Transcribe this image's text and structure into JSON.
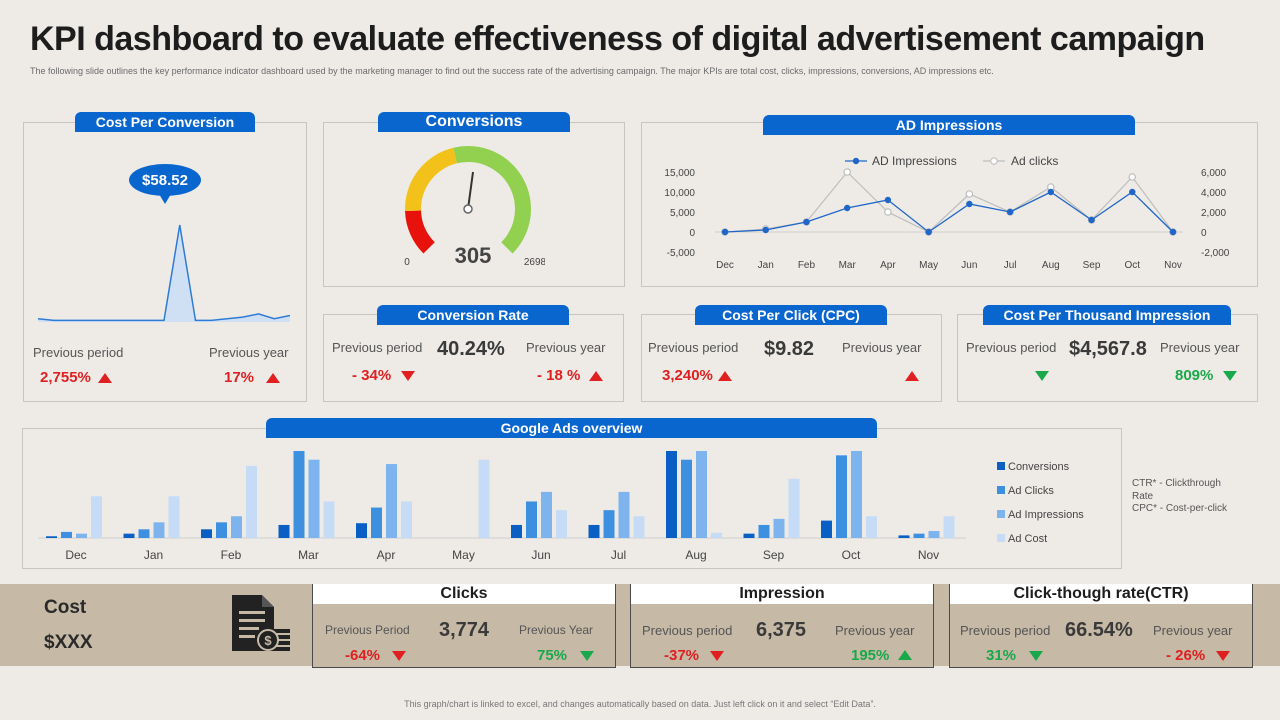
{
  "title": "KPI dashboard to evaluate effectiveness of digital advertisement campaign",
  "subtitle": "The following slide outlines the key performance indicator dashboard used by the marketing manager to find out the success rate of the advertising campaign. The major KPIs are total cost, clicks, impressions, conversions, AD impressions etc.",
  "cost_per_conversion": {
    "title": "Cost Per Conversion",
    "bubble": "$58.52",
    "prev_period_label": "Previous period",
    "prev_year_label": "Previous year",
    "prev_period_value": "2,755%",
    "prev_year_value": "17%"
  },
  "conversions": {
    "title": "Conversions",
    "value": "305",
    "min": "0",
    "max": "2698"
  },
  "conversion_rate": {
    "title": "Conversion Rate",
    "value": "40.24%",
    "prev_period_label": "Previous period",
    "prev_year_label": "Previous year",
    "prev_period_value": "- 34%",
    "prev_year_value": "- 18 %"
  },
  "cpc": {
    "title": "Cost Per Click (CPC)",
    "value": "$9.82",
    "prev_period_label": "Previous period",
    "prev_year_label": "Previous year",
    "prev_period_value": "3,240%"
  },
  "cpm": {
    "title": "Cost Per Thousand Impression",
    "value": "$4,567.8",
    "prev_period_label": "Previous period",
    "prev_year_label": "Previous year",
    "prev_year_value": "809%"
  },
  "google_ads": {
    "title": "Google Ads overview",
    "note1": "CTR* - Clickthrough Rate",
    "note2": "CPC* - Cost-per-click"
  },
  "cost": {
    "label": "Cost",
    "value": "$XXX"
  },
  "clicks": {
    "title": "Clicks",
    "prev_period_label": "Previous Period",
    "prev_year_label": "Previous Year",
    "value": "3,774",
    "prev_period_value": "-64%",
    "prev_year_value": "75%"
  },
  "impression": {
    "title": "Impression",
    "prev_period_label": "Previous period",
    "prev_year_label": "Previous year",
    "value": "6,375",
    "prev_period_value": "-37%",
    "prev_year_value": "195%"
  },
  "ctr": {
    "title": "Click-though rate(CTR)",
    "prev_period_label": "Previous period",
    "prev_year_label": "Previous year",
    "value": "66.54%",
    "prev_period_value": "31%",
    "prev_year_value": "- 26%"
  },
  "footer": "This graph/chart is linked to excel, and changes automatically based on data. Just left click on it and select “Edit Data”.",
  "colors": {
    "accent": "#0a66cf",
    "red": "#e02020",
    "green": "#19a84a",
    "band": "#c6b9a6"
  },
  "chart_data": [
    {
      "type": "area",
      "title": "Cost Per Conversion",
      "values": [
        2,
        1,
        1,
        1,
        1,
        1,
        1,
        1,
        1,
        60,
        1,
        1,
        2,
        3,
        5,
        2,
        4
      ]
    },
    {
      "type": "gauge",
      "title": "Conversions",
      "value": 305,
      "range": [
        0,
        2698
      ],
      "segments": [
        {
          "name": "red",
          "color": "#e8120c",
          "to": 0.16
        },
        {
          "name": "yellow",
          "color": "#f2c21a",
          "to": 0.45
        },
        {
          "name": "green",
          "color": "#92d050",
          "to": 1.0
        }
      ]
    },
    {
      "type": "line",
      "title": "AD Impressions",
      "categories": [
        "Dec",
        "Jan",
        "Feb",
        "Mar",
        "Apr",
        "May",
        "Jun",
        "Jul",
        "Aug",
        "Sep",
        "Oct",
        "Nov"
      ],
      "series": [
        {
          "name": "AD Impressions",
          "axis": "left",
          "values": [
            0,
            500,
            2500,
            6000,
            8000,
            0,
            7000,
            5000,
            10000,
            3000,
            10000,
            0
          ]
        },
        {
          "name": "Ad clicks",
          "axis": "right",
          "values": [
            0,
            300,
            1000,
            6000,
            2000,
            0,
            3800,
            2000,
            4500,
            1200,
            5500,
            0
          ]
        }
      ],
      "y_left": {
        "min": -5000,
        "max": 15000,
        "ticks": [
          "15,000",
          "10,000",
          "5,000",
          "0",
          "-5,000"
        ]
      },
      "y_right": {
        "min": -2000,
        "max": 6000,
        "ticks": [
          "6,000",
          "4,000",
          "2,000",
          "0",
          "-2,000"
        ]
      }
    },
    {
      "type": "bar",
      "title": "Google Ads overview",
      "categories": [
        "Dec",
        "Jan",
        "Feb",
        "Mar",
        "Apr",
        "May",
        "Jun",
        "Jul",
        "Aug",
        "Sep",
        "Oct",
        "Nov"
      ],
      "ylim": [
        0,
        100
      ],
      "series": [
        {
          "name": "Conversions",
          "color": "#0a5fc4",
          "values": [
            2,
            5,
            10,
            15,
            17,
            0,
            15,
            15,
            100,
            5,
            20,
            3
          ]
        },
        {
          "name": "Ad Clicks",
          "color": "#3d8fe0",
          "values": [
            7,
            10,
            18,
            100,
            35,
            0,
            42,
            32,
            90,
            15,
            95,
            5
          ]
        },
        {
          "name": "Ad Impressions",
          "color": "#7db4ee",
          "values": [
            5,
            18,
            25,
            90,
            85,
            0,
            53,
            53,
            100,
            22,
            100,
            8
          ]
        },
        {
          "name": "Ad Cost",
          "color": "#c6dcf6",
          "values": [
            48,
            48,
            83,
            42,
            42,
            90,
            32,
            25,
            6,
            68,
            25,
            25
          ]
        }
      ]
    }
  ]
}
